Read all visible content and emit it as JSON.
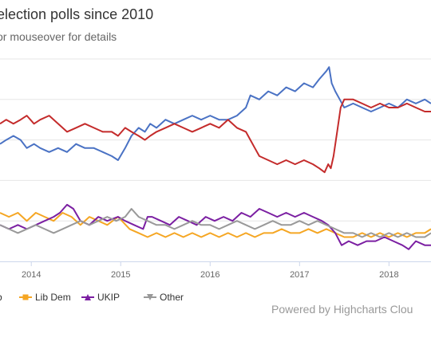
{
  "header": {
    "title": "election polls since 2010",
    "subtitle": "or mouseover for details"
  },
  "credits": "Powered by Highcharts Clou",
  "colors": {
    "Lab": "#4a72c4",
    "Con": "#c42b2b",
    "Lib Dem": "#f5a623",
    "UKIP": "#7b1fa2",
    "Other": "#999999",
    "grid": "#e6e6e6"
  },
  "chart_data": {
    "type": "line",
    "title": "election polls since 2010",
    "subtitle": "or mouseover for details",
    "x_tick_labels": [
      "2014",
      "2015",
      "2016",
      "2017",
      "2018"
    ],
    "x_range": [
      2013.65,
      2018.47
    ],
    "grid": true,
    "legend_position": "bottom",
    "legend_items": [
      {
        "label": "Lib Dem",
        "marker": "square",
        "color": "#f5a623"
      },
      {
        "label": "UKIP",
        "marker": "triangle-up",
        "color": "#7b1fa2"
      },
      {
        "label": "Other",
        "marker": "triangle-down",
        "color": "#999999"
      }
    ],
    "series": [
      {
        "color": "#4a72c4",
        "x": [
          2013.65,
          2013.72,
          2013.8,
          2013.88,
          2013.95,
          2014.03,
          2014.1,
          2014.2,
          2014.3,
          2014.4,
          2014.5,
          2014.6,
          2014.7,
          2014.8,
          2014.9,
          2014.97,
          2015.05,
          2015.12,
          2015.2,
          2015.27,
          2015.33,
          2015.4,
          2015.5,
          2015.6,
          2015.7,
          2015.8,
          2015.9,
          2016.0,
          2016.1,
          2016.2,
          2016.3,
          2016.4,
          2016.45,
          2016.55,
          2016.65,
          2016.75,
          2016.85,
          2016.95,
          2017.05,
          2017.15,
          2017.22,
          2017.3,
          2017.33,
          2017.36,
          2017.4,
          2017.45,
          2017.5,
          2017.6,
          2017.7,
          2017.8,
          2017.9,
          2018.0,
          2018.1,
          2018.2,
          2018.3,
          2018.4,
          2018.47
        ],
        "y": [
          39.5,
          40.0,
          40.5,
          40.0,
          39.0,
          39.5,
          39.0,
          38.5,
          39.0,
          38.5,
          39.5,
          39.0,
          39.0,
          38.5,
          38.0,
          37.5,
          39.0,
          40.5,
          41.5,
          41.0,
          42.0,
          41.5,
          42.5,
          42.0,
          42.5,
          43.0,
          42.5,
          43.0,
          42.5,
          42.5,
          43.0,
          44.0,
          45.5,
          45.0,
          46.0,
          45.5,
          46.5,
          46.0,
          47.0,
          46.5,
          47.5,
          48.5,
          49.0,
          47.0,
          46.0,
          45.0,
          44.0,
          44.5,
          44.0,
          43.5,
          44.0,
          44.5,
          44.0,
          45.0,
          44.5,
          45.0,
          44.5
        ]
      },
      {
        "color": "#c42b2b",
        "x": [
          2013.65,
          2013.72,
          2013.8,
          2013.88,
          2013.95,
          2014.03,
          2014.1,
          2014.2,
          2014.3,
          2014.4,
          2014.5,
          2014.6,
          2014.7,
          2014.8,
          2014.9,
          2014.97,
          2015.05,
          2015.12,
          2015.2,
          2015.27,
          2015.33,
          2015.4,
          2015.5,
          2015.6,
          2015.7,
          2015.8,
          2015.9,
          2016.0,
          2016.1,
          2016.2,
          2016.3,
          2016.4,
          2016.45,
          2016.5,
          2016.55,
          2016.65,
          2016.75,
          2016.85,
          2016.95,
          2017.05,
          2017.15,
          2017.22,
          2017.28,
          2017.32,
          2017.35,
          2017.38,
          2017.42,
          2017.46,
          2017.5,
          2017.6,
          2017.7,
          2017.8,
          2017.9,
          2018.0,
          2018.1,
          2018.2,
          2018.3,
          2018.4,
          2018.47
        ],
        "y": [
          42.0,
          42.5,
          42.0,
          42.5,
          43.0,
          42.0,
          42.5,
          43.0,
          42.0,
          41.0,
          41.5,
          42.0,
          41.5,
          41.0,
          41.0,
          40.5,
          41.5,
          41.0,
          40.5,
          40.0,
          40.5,
          41.0,
          41.5,
          42.0,
          41.5,
          41.0,
          41.5,
          42.0,
          41.5,
          42.5,
          41.5,
          41.0,
          40.0,
          39.0,
          38.0,
          37.5,
          37.0,
          37.5,
          37.0,
          37.5,
          37.0,
          36.5,
          36.0,
          37.0,
          36.5,
          38.0,
          41.0,
          44.0,
          45.0,
          45.0,
          44.5,
          44.0,
          44.5,
          44.0,
          44.0,
          44.5,
          44.0,
          43.5,
          43.5
        ]
      },
      {
        "color": "#f5a623",
        "x": [
          2013.65,
          2013.75,
          2013.85,
          2013.95,
          2014.05,
          2014.15,
          2014.25,
          2014.35,
          2014.45,
          2014.55,
          2014.65,
          2014.75,
          2014.85,
          2014.97,
          2015.1,
          2015.2,
          2015.3,
          2015.4,
          2015.5,
          2015.6,
          2015.7,
          2015.8,
          2015.9,
          2016.0,
          2016.1,
          2016.2,
          2016.3,
          2016.4,
          2016.5,
          2016.6,
          2016.7,
          2016.8,
          2016.9,
          2017.0,
          2017.1,
          2017.2,
          2017.3,
          2017.4,
          2017.5,
          2017.6,
          2017.7,
          2017.8,
          2017.9,
          2018.0,
          2018.1,
          2018.2,
          2018.3,
          2018.4,
          2018.47
        ],
        "y": [
          31.0,
          30.5,
          31.0,
          30.0,
          31.0,
          30.5,
          30.0,
          31.0,
          30.5,
          29.5,
          30.5,
          30.0,
          29.5,
          30.5,
          29.0,
          28.5,
          28.0,
          28.5,
          28.0,
          28.5,
          28.0,
          28.5,
          28.0,
          28.5,
          28.0,
          28.5,
          28.0,
          28.5,
          28.0,
          28.5,
          28.5,
          29.0,
          28.5,
          28.5,
          29.0,
          28.5,
          29.0,
          28.5,
          28.0,
          28.0,
          28.5,
          28.0,
          28.5,
          28.0,
          28.5,
          28.0,
          28.5,
          28.5,
          29.0
        ]
      },
      {
        "color": "#7b1fa2",
        "x": [
          2013.65,
          2013.75,
          2013.85,
          2013.95,
          2014.05,
          2014.15,
          2014.25,
          2014.32,
          2014.4,
          2014.47,
          2014.55,
          2014.65,
          2014.75,
          2014.85,
          2014.97,
          2015.05,
          2015.15,
          2015.25,
          2015.3,
          2015.35,
          2015.45,
          2015.55,
          2015.65,
          2015.75,
          2015.85,
          2015.95,
          2016.05,
          2016.15,
          2016.25,
          2016.35,
          2016.45,
          2016.55,
          2016.65,
          2016.75,
          2016.85,
          2016.95,
          2017.05,
          2017.15,
          2017.25,
          2017.32,
          2017.4,
          2017.47,
          2017.55,
          2017.65,
          2017.75,
          2017.85,
          2017.95,
          2018.05,
          2018.15,
          2018.22,
          2018.3,
          2018.4,
          2018.47
        ],
        "y": [
          29.5,
          29.0,
          29.5,
          29.0,
          29.5,
          30.0,
          30.5,
          31.0,
          32.0,
          31.5,
          30.0,
          29.5,
          30.5,
          30.0,
          30.5,
          30.0,
          29.5,
          29.0,
          30.5,
          30.5,
          30.0,
          29.5,
          30.5,
          30.0,
          29.5,
          30.5,
          30.0,
          30.5,
          30.0,
          31.0,
          30.5,
          31.5,
          31.0,
          30.5,
          31.0,
          30.5,
          31.0,
          30.5,
          30.0,
          29.5,
          28.5,
          27.0,
          27.5,
          27.0,
          27.5,
          27.5,
          28.0,
          27.5,
          27.0,
          26.5,
          27.5,
          27.0,
          27.0
        ]
      },
      {
        "color": "#999999",
        "x": [
          2013.65,
          2013.75,
          2013.85,
          2013.95,
          2014.05,
          2014.15,
          2014.25,
          2014.35,
          2014.45,
          2014.55,
          2014.65,
          2014.75,
          2014.85,
          2014.95,
          2015.05,
          2015.12,
          2015.2,
          2015.3,
          2015.4,
          2015.5,
          2015.6,
          2015.7,
          2015.8,
          2015.9,
          2016.0,
          2016.1,
          2016.2,
          2016.3,
          2016.4,
          2016.5,
          2016.6,
          2016.7,
          2016.8,
          2016.9,
          2017.0,
          2017.1,
          2017.2,
          2017.3,
          2017.4,
          2017.5,
          2017.6,
          2017.7,
          2017.8,
          2017.9,
          2018.0,
          2018.1,
          2018.2,
          2018.3,
          2018.4,
          2018.47
        ],
        "y": [
          29.5,
          29.0,
          28.5,
          29.0,
          29.5,
          29.0,
          28.5,
          29.0,
          29.5,
          30.0,
          29.5,
          30.0,
          30.5,
          30.0,
          30.5,
          31.5,
          30.5,
          30.0,
          29.5,
          29.5,
          29.0,
          29.5,
          30.0,
          29.5,
          29.5,
          29.0,
          29.5,
          30.0,
          29.5,
          29.0,
          29.5,
          30.0,
          29.5,
          29.5,
          30.0,
          29.5,
          30.0,
          29.5,
          29.0,
          28.5,
          28.5,
          28.0,
          28.5,
          28.0,
          28.5,
          28.0,
          28.5,
          28.0,
          28.0,
          28.5
        ]
      }
    ]
  }
}
